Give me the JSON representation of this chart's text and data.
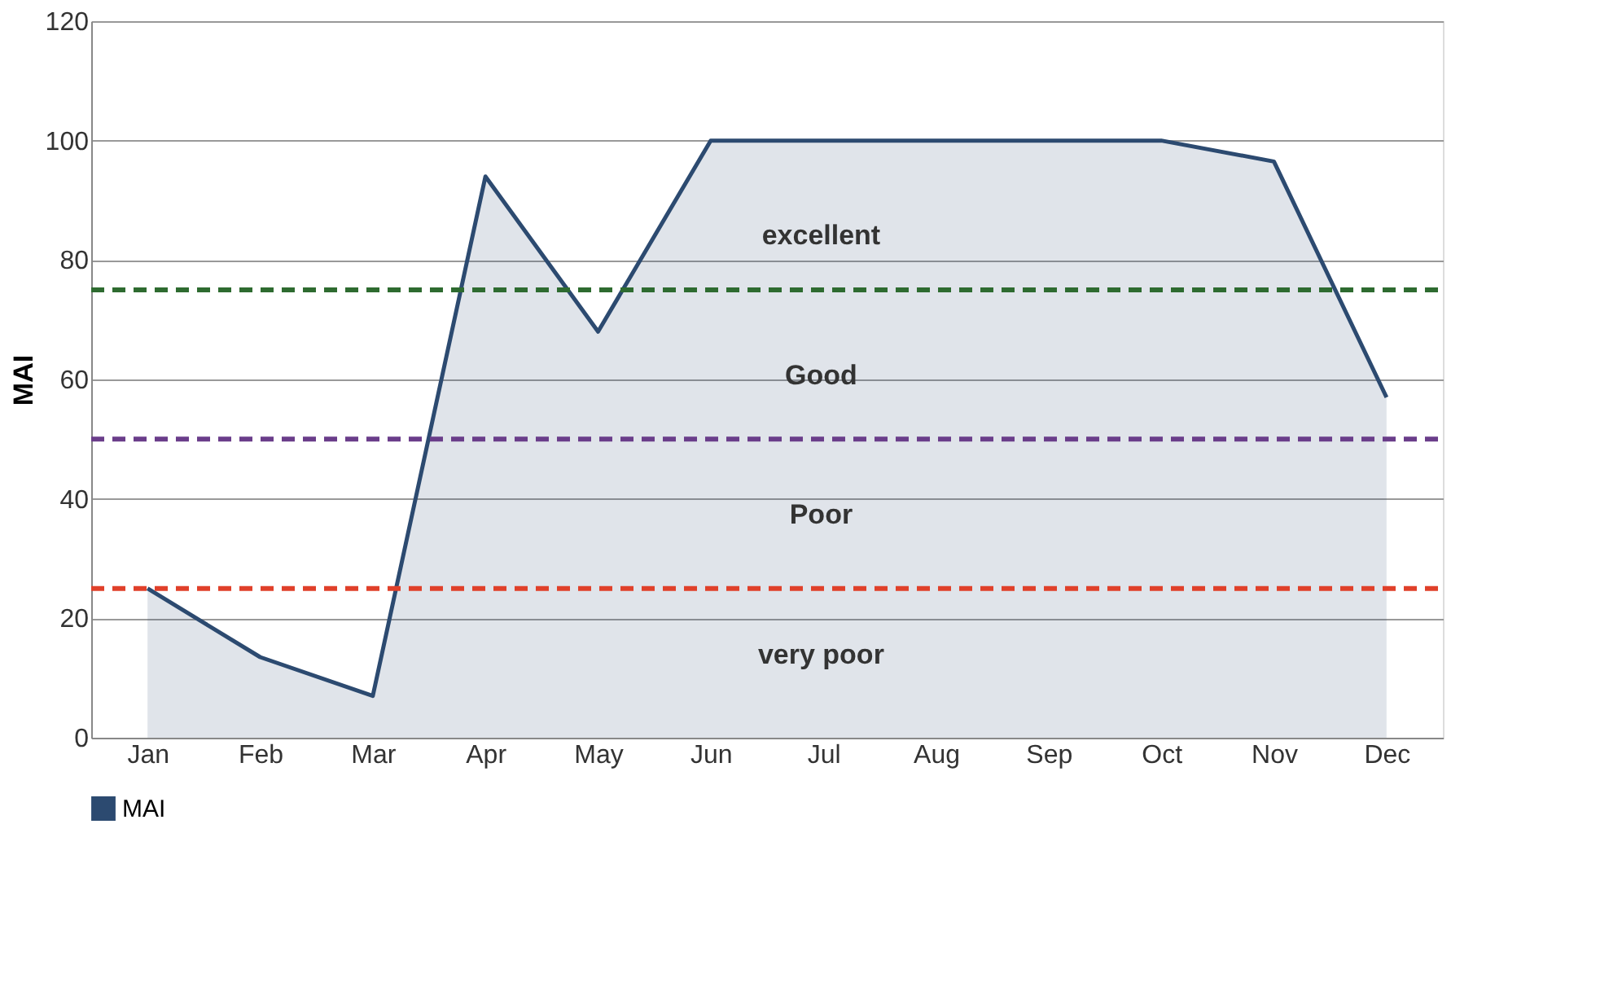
{
  "chart_data": {
    "type": "area",
    "ylabel": "MAI",
    "categories": [
      "Jan",
      "Feb",
      "Mar",
      "Apr",
      "May",
      "Jun",
      "Jul",
      "Aug",
      "Sep",
      "Oct",
      "Nov",
      "Dec"
    ],
    "series": [
      {
        "name": "MAI",
        "color": "#2c4a70",
        "values": [
          25,
          13.5,
          7,
          94,
          68,
          100,
          100,
          100,
          100,
          100,
          96.5,
          57
        ]
      }
    ],
    "ylim": [
      0,
      120
    ],
    "yticks": [
      0,
      20,
      40,
      60,
      80,
      100,
      120
    ],
    "grid": "y",
    "legend": "bottom",
    "ref_lines": [
      {
        "axis": "y",
        "value": 75,
        "color": "#2e6b30",
        "line_style": "dashed"
      },
      {
        "axis": "y",
        "value": 50,
        "color": "#6a3d8a",
        "line_style": "dashed"
      },
      {
        "axis": "y",
        "value": 25,
        "color": "#e0402a",
        "line_style": "dashed"
      }
    ],
    "annotations": [
      "excellent",
      "Good",
      "Poor",
      "very poor"
    ]
  }
}
